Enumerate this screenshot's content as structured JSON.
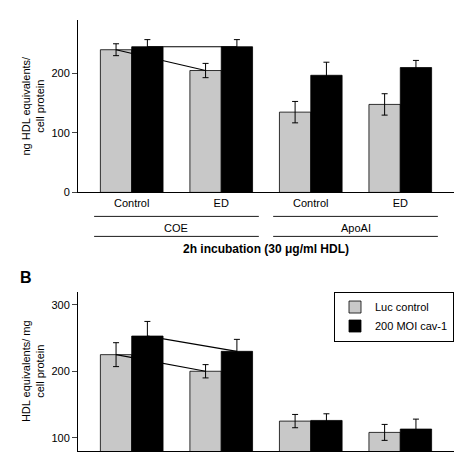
{
  "chart_data": [
    {
      "type": "bar",
      "categories": [
        "Control",
        "ED",
        "Control",
        "ED"
      ],
      "groups": [
        {
          "label": "COE",
          "members": [
            0,
            1
          ]
        },
        {
          "label": "ApoAI",
          "members": [
            2,
            3
          ]
        }
      ],
      "xlabel": "2h incubation (30 μg/ml HDL)",
      "ylabel": "ng HDL equivalents/\ncell protein",
      "series": [
        {
          "color": "#c8c8c8",
          "values": [
            240,
            205,
            135,
            148
          ],
          "errors": [
            10,
            12,
            18,
            18
          ]
        },
        {
          "color": "#000000",
          "values": [
            245,
            245,
            197,
            210
          ],
          "errors": [
            12,
            12,
            22,
            12
          ]
        }
      ],
      "connected": [
        0,
        1
      ],
      "ylim": [
        0,
        290
      ],
      "yticks": [
        0,
        100,
        200
      ],
      "grid": false
    },
    {
      "type": "bar",
      "title": "B",
      "categories": [
        null,
        null,
        null,
        null
      ],
      "ylabel": "HDL equivalents/ mg\ncell protein",
      "series": [
        {
          "name": "Luc control",
          "color": "#c8c8c8",
          "values": [
            225,
            200,
            125,
            108
          ],
          "errors": [
            18,
            10,
            10,
            12
          ]
        },
        {
          "name": "200 MOI cav-1",
          "color": "#000000",
          "values": [
            253,
            230,
            126,
            113
          ],
          "errors": [
            22,
            18,
            10,
            15
          ]
        }
      ],
      "connected": [
        0,
        1
      ],
      "ylim": [
        80,
        320
      ],
      "yticks": [
        100,
        200,
        300
      ],
      "grid": false,
      "legend": "upper right"
    }
  ]
}
